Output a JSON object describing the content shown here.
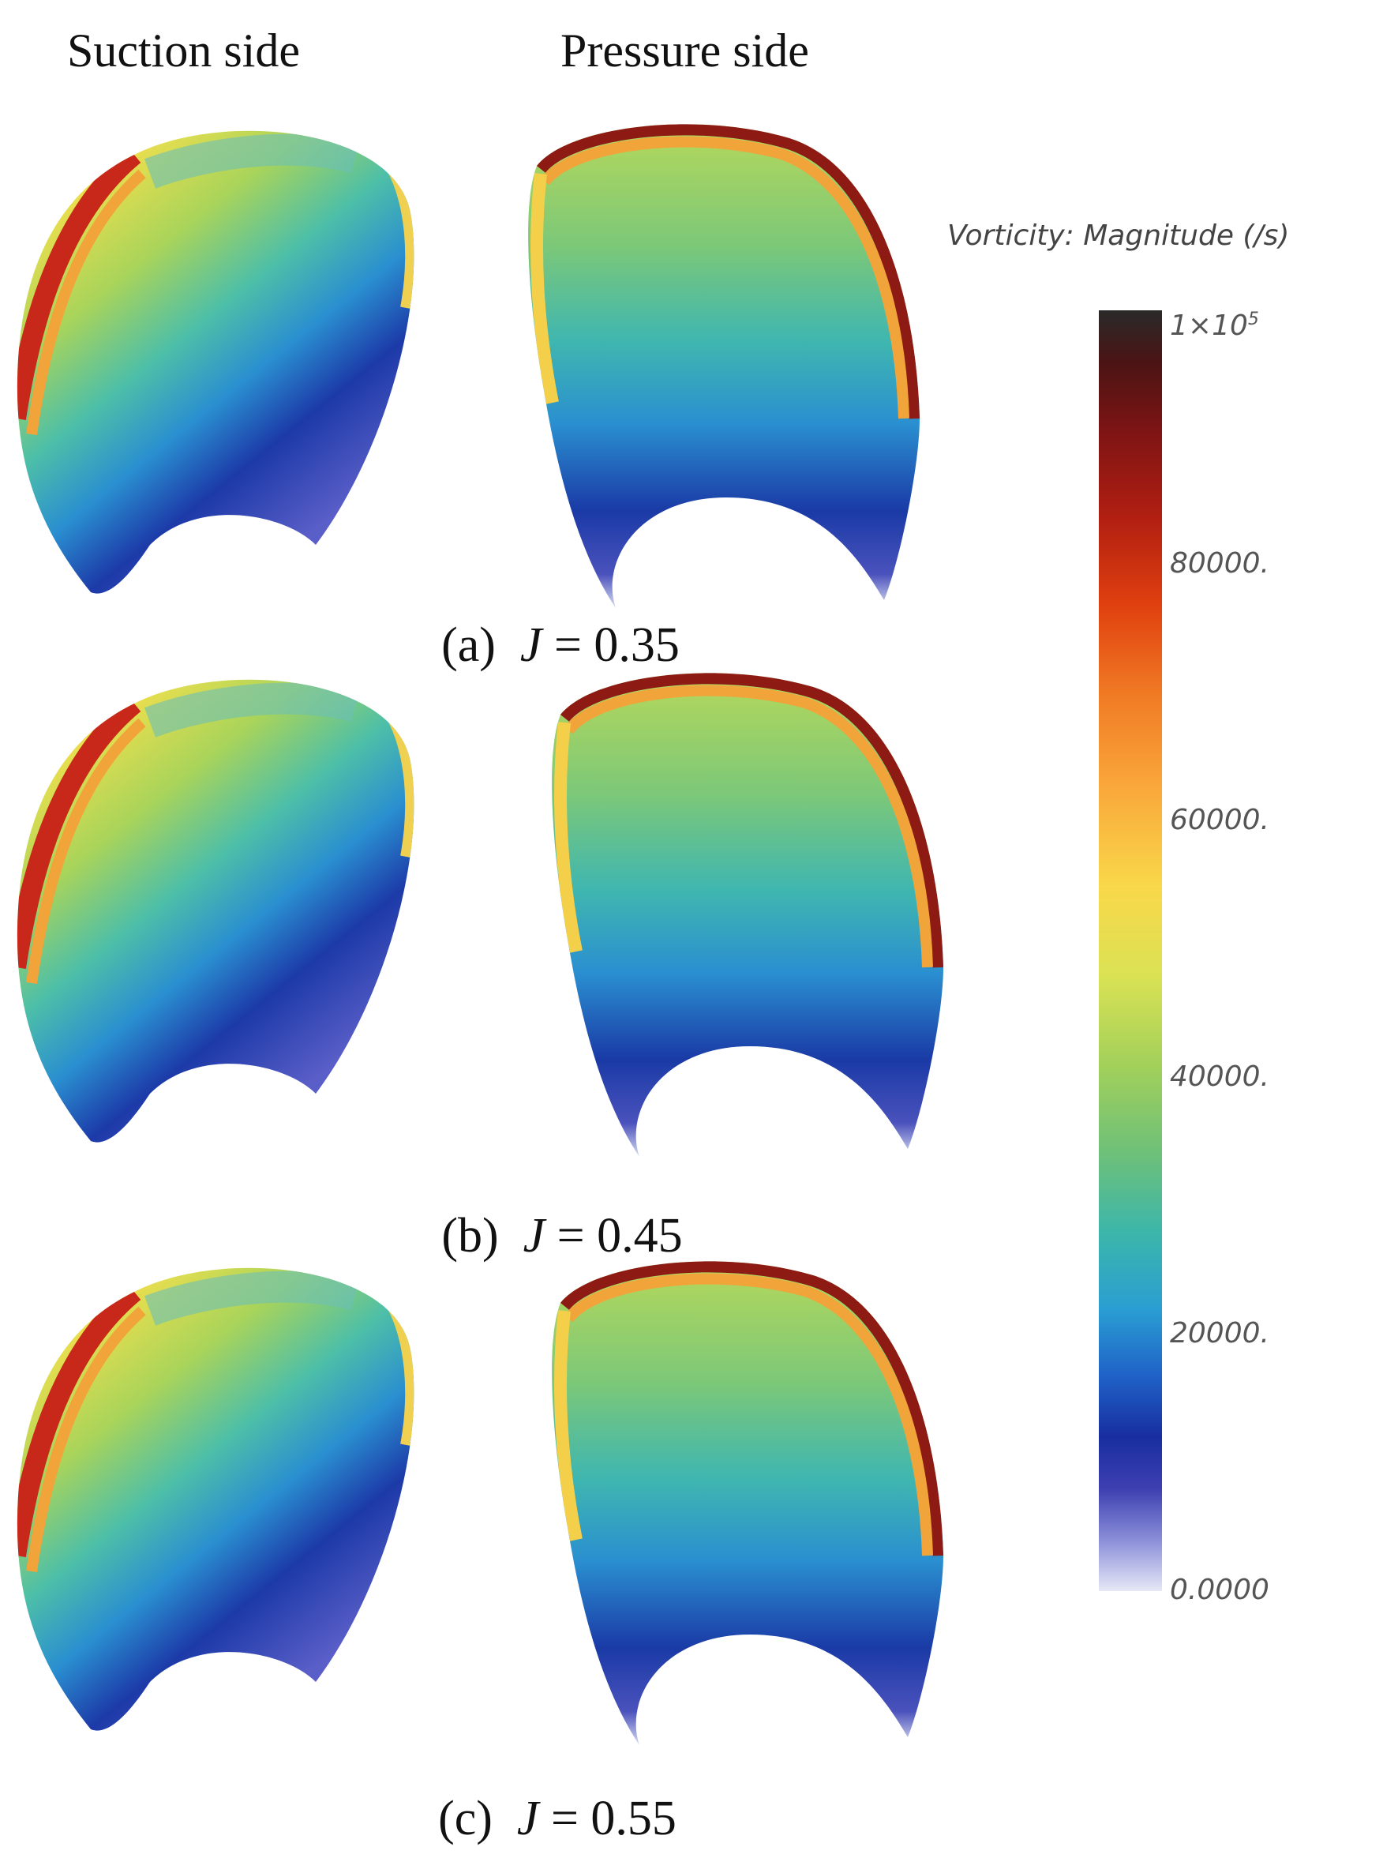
{
  "headers": {
    "suction": "Suction side",
    "pressure": "Pressure side"
  },
  "cases": [
    {
      "prefix": "(a)",
      "jvar": "J",
      "rest": " = 0.35"
    },
    {
      "prefix": "(b)",
      "jvar": "J",
      "rest": " = 0.45"
    },
    {
      "prefix": "(c)",
      "jvar": "J",
      "rest": " = 0.55"
    }
  ],
  "colorbar": {
    "title": "Vorticity: Magnitude (/s)",
    "max_base": "1×10",
    "max_exp": "5",
    "ticks": [
      "80000.",
      "60000.",
      "40000.",
      "20000.",
      "0.0000"
    ]
  }
}
